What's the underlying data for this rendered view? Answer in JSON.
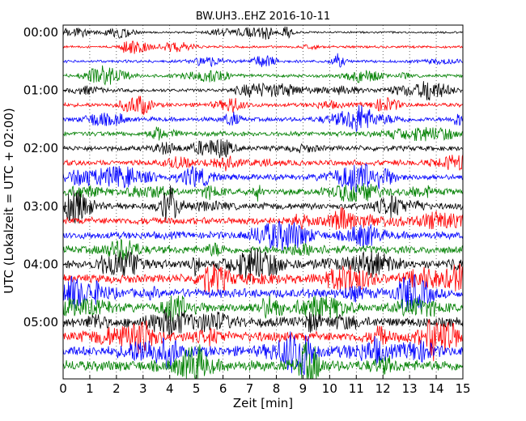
{
  "chart_data": {
    "type": "line",
    "title": "BW.UH3..EHZ 2016-10-11",
    "xlabel": "Zeit  [min]",
    "ylabel": "UTC (Lokalzeit = UTC + 02:00)",
    "xlim": [
      0,
      15
    ],
    "x_ticks": [
      "0",
      "1",
      "2",
      "3",
      "4",
      "5",
      "6",
      "7",
      "8",
      "9",
      "10",
      "11",
      "12",
      "13",
      "14",
      "15"
    ],
    "y_ticks": [
      "00:00",
      "01:00",
      "02:00",
      "03:00",
      "04:00",
      "05:00"
    ],
    "trace_count": 24,
    "trace_interval_min": 15,
    "colors": [
      "#000000",
      "#ff0000",
      "#0000ff",
      "#008000"
    ],
    "grid": "vertical dotted"
  }
}
